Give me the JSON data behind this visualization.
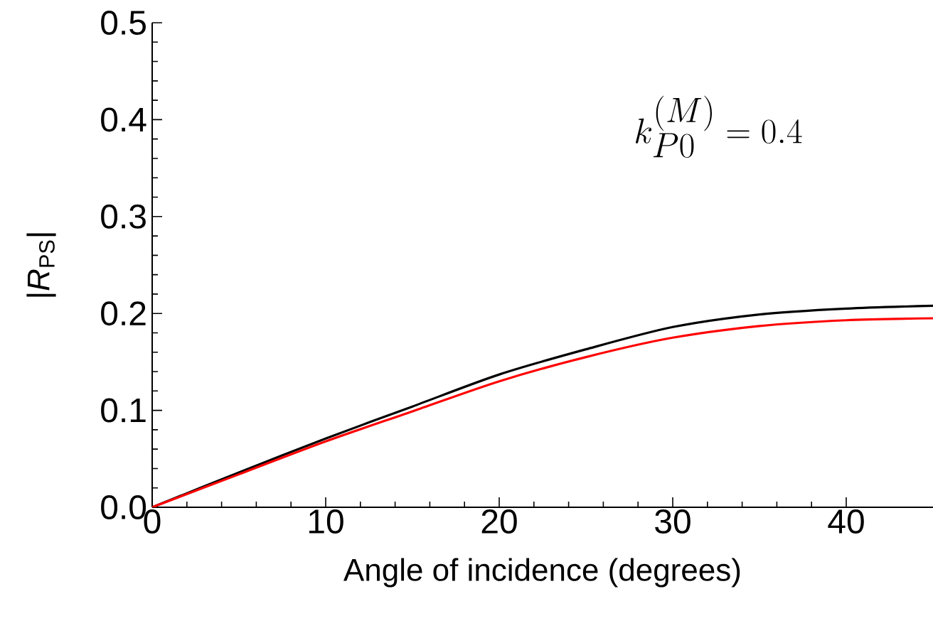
{
  "chart_data": {
    "type": "line",
    "xlabel": "Angle of incidence (degrees)",
    "ylabel": "|*R*$_{PS}$|",
    "annotations": [
      "k_{P0}^{(M)} = 0.4"
    ],
    "x": [
      0,
      5,
      10,
      15,
      20,
      25,
      30,
      35,
      40,
      45
    ],
    "series": [
      {
        "color": "#000000",
        "values": [
          0,
          0.036,
          0.071,
          0.104,
          0.137,
          0.163,
          0.186,
          0.199,
          0.205,
          0.208
        ]
      },
      {
        "color": "#ff0000",
        "values": [
          0,
          0.034,
          0.068,
          0.099,
          0.13,
          0.155,
          0.175,
          0.187,
          0.193,
          0.195
        ]
      }
    ],
    "xlim": [
      0,
      45
    ],
    "ylim": [
      0,
      0.5
    ],
    "xticks": [
      0,
      10,
      20,
      30,
      40
    ],
    "yticks": [
      {
        "value": 0,
        "label": "0.0"
      },
      {
        "value": 0.1,
        "label": "0.1"
      },
      {
        "value": 0.2,
        "label": "0.2"
      },
      {
        "value": 0.3,
        "label": "0.3"
      },
      {
        "value": 0.4,
        "label": "0.4"
      },
      {
        "value": 0.5,
        "label": "0.5"
      }
    ]
  }
}
